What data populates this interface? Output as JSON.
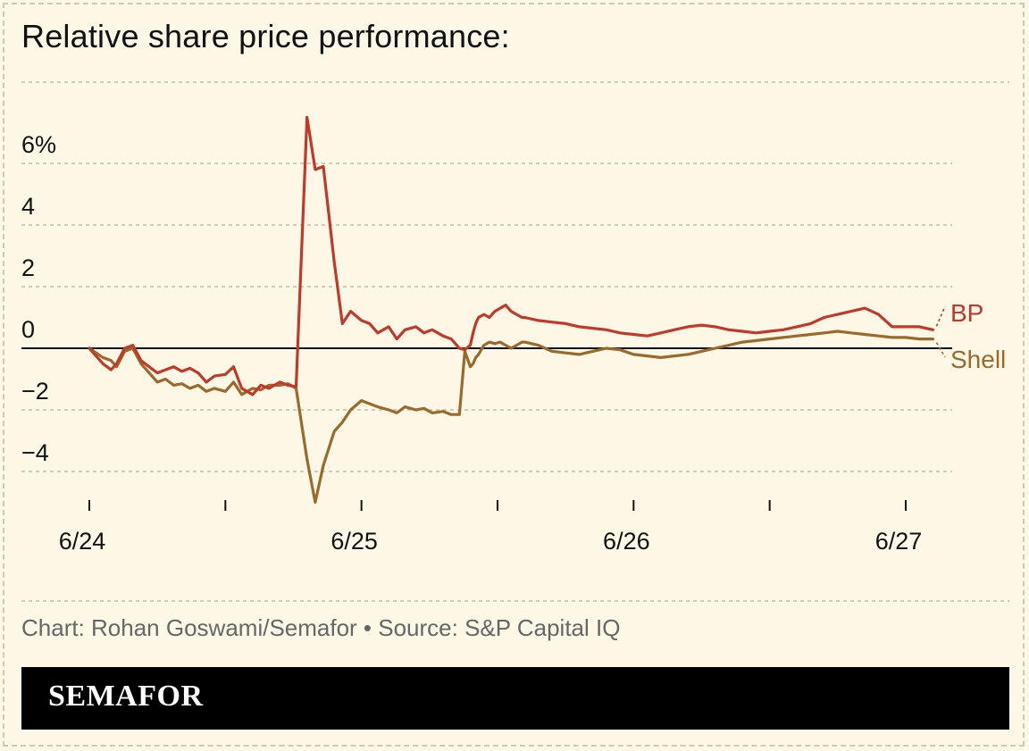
{
  "title": "Relative share price performance:",
  "caption": "Chart: Rohan Goswami/Semafor • Source: S&P Capital IQ",
  "brand": "SEMAFOR",
  "colors": {
    "bp": "#c0392b",
    "shell": "#9a6a2c",
    "background": "#fdf8e6",
    "grid": "#b7b1a0"
  },
  "chart_data": {
    "type": "line",
    "title": "Relative share price performance:",
    "xlabel": "",
    "ylabel": "",
    "ylim": [
      -5,
      8
    ],
    "xlim": [
      0,
      3.15
    ],
    "yticks": [
      {
        "value": 6,
        "label": "6%"
      },
      {
        "value": 4,
        "label": "4"
      },
      {
        "value": 2,
        "label": "2"
      },
      {
        "value": 0,
        "label": "0"
      },
      {
        "value": -2,
        "label": "−2"
      },
      {
        "value": -4,
        "label": "−4"
      }
    ],
    "xticks": [
      {
        "value": 0,
        "label": "6/24"
      },
      {
        "value": 1,
        "label": "6/25"
      },
      {
        "value": 2,
        "label": "6/26"
      },
      {
        "value": 3,
        "label": "6/27"
      }
    ],
    "minor_xticks": [
      0.5,
      1.5,
      2.5
    ],
    "series": [
      {
        "name": "BP",
        "x": [
          0,
          0.05,
          0.08,
          0.1,
          0.13,
          0.16,
          0.19,
          0.22,
          0.25,
          0.28,
          0.31,
          0.34,
          0.37,
          0.4,
          0.43,
          0.46,
          0.5,
          0.53,
          0.56,
          0.6,
          0.63,
          0.66,
          0.7,
          0.73,
          0.76,
          0.8,
          0.83,
          0.86,
          0.9,
          0.93,
          0.96,
          1.0,
          1.03,
          1.06,
          1.1,
          1.13,
          1.16,
          1.2,
          1.23,
          1.26,
          1.3,
          1.33,
          1.36,
          1.38,
          1.4,
          1.41,
          1.42,
          1.43,
          1.45,
          1.47,
          1.49,
          1.51,
          1.53,
          1.55,
          1.57,
          1.59,
          1.6,
          1.65,
          1.7,
          1.75,
          1.8,
          1.85,
          1.9,
          1.95,
          2.0,
          2.05,
          2.1,
          2.15,
          2.2,
          2.25,
          2.3,
          2.35,
          2.4,
          2.45,
          2.5,
          2.55,
          2.6,
          2.65,
          2.7,
          2.75,
          2.8,
          2.85,
          2.9,
          2.95,
          3.0,
          3.05,
          3.1
        ],
        "values": [
          0,
          -0.5,
          -0.7,
          -0.5,
          0,
          0.1,
          -0.4,
          -0.6,
          -0.8,
          -0.7,
          -0.6,
          -0.75,
          -0.65,
          -0.8,
          -1.1,
          -0.9,
          -0.85,
          -0.6,
          -1.3,
          -1.5,
          -1.2,
          -1.3,
          -1.1,
          -1.2,
          -1.25,
          7.5,
          5.8,
          5.9,
          2.8,
          0.8,
          1.2,
          0.9,
          0.8,
          0.5,
          0.7,
          0.3,
          0.6,
          0.7,
          0.5,
          0.6,
          0.4,
          0.3,
          0.0,
          -0.05,
          0.1,
          0.5,
          0.8,
          1.0,
          1.1,
          1.0,
          1.2,
          1.3,
          1.4,
          1.2,
          1.1,
          1.0,
          1.0,
          0.9,
          0.85,
          0.8,
          0.7,
          0.65,
          0.6,
          0.5,
          0.45,
          0.4,
          0.5,
          0.6,
          0.7,
          0.75,
          0.7,
          0.6,
          0.55,
          0.5,
          0.55,
          0.6,
          0.7,
          0.8,
          1.0,
          1.1,
          1.2,
          1.3,
          1.1,
          0.7,
          0.7,
          0.7,
          0.6
        ]
      },
      {
        "name": "Shell",
        "x": [
          0,
          0.05,
          0.08,
          0.1,
          0.13,
          0.16,
          0.19,
          0.22,
          0.25,
          0.28,
          0.31,
          0.34,
          0.37,
          0.4,
          0.43,
          0.46,
          0.5,
          0.53,
          0.56,
          0.6,
          0.63,
          0.66,
          0.7,
          0.73,
          0.76,
          0.8,
          0.83,
          0.86,
          0.9,
          0.93,
          0.96,
          1.0,
          1.03,
          1.06,
          1.1,
          1.13,
          1.16,
          1.2,
          1.23,
          1.26,
          1.3,
          1.33,
          1.36,
          1.38,
          1.4,
          1.41,
          1.42,
          1.43,
          1.45,
          1.47,
          1.49,
          1.51,
          1.53,
          1.55,
          1.57,
          1.59,
          1.6,
          1.65,
          1.7,
          1.75,
          1.8,
          1.85,
          1.9,
          1.95,
          2.0,
          2.05,
          2.1,
          2.15,
          2.2,
          2.25,
          2.3,
          2.35,
          2.4,
          2.45,
          2.5,
          2.55,
          2.6,
          2.65,
          2.7,
          2.75,
          2.8,
          2.85,
          2.9,
          2.95,
          3.0,
          3.05,
          3.1
        ],
        "values": [
          0,
          -0.3,
          -0.4,
          -0.6,
          -0.1,
          0.0,
          -0.5,
          -0.8,
          -1.1,
          -1.0,
          -1.2,
          -1.15,
          -1.3,
          -1.2,
          -1.4,
          -1.3,
          -1.4,
          -1.1,
          -1.5,
          -1.3,
          -1.35,
          -1.2,
          -1.2,
          -1.15,
          -1.3,
          -3.6,
          -5.0,
          -3.8,
          -2.7,
          -2.4,
          -2.0,
          -1.7,
          -1.8,
          -1.9,
          -2.0,
          -2.1,
          -1.9,
          -2.0,
          -1.95,
          -2.1,
          -2.05,
          -2.15,
          -2.15,
          -0.1,
          -0.6,
          -0.5,
          -0.3,
          -0.2,
          0.1,
          0.2,
          0.15,
          0.2,
          0.1,
          0.0,
          0.1,
          0.2,
          0.2,
          0.1,
          -0.1,
          -0.15,
          -0.2,
          -0.1,
          0.0,
          -0.05,
          -0.2,
          -0.25,
          -0.3,
          -0.25,
          -0.2,
          -0.1,
          0.0,
          0.1,
          0.2,
          0.25,
          0.3,
          0.35,
          0.4,
          0.45,
          0.5,
          0.55,
          0.5,
          0.45,
          0.4,
          0.35,
          0.35,
          0.3,
          0.3
        ]
      }
    ],
    "annotations": [
      {
        "series": "BP",
        "label": "BP"
      },
      {
        "series": "Shell",
        "label": "Shell"
      }
    ],
    "grid": true,
    "legend": "direct labels at right end of lines"
  }
}
